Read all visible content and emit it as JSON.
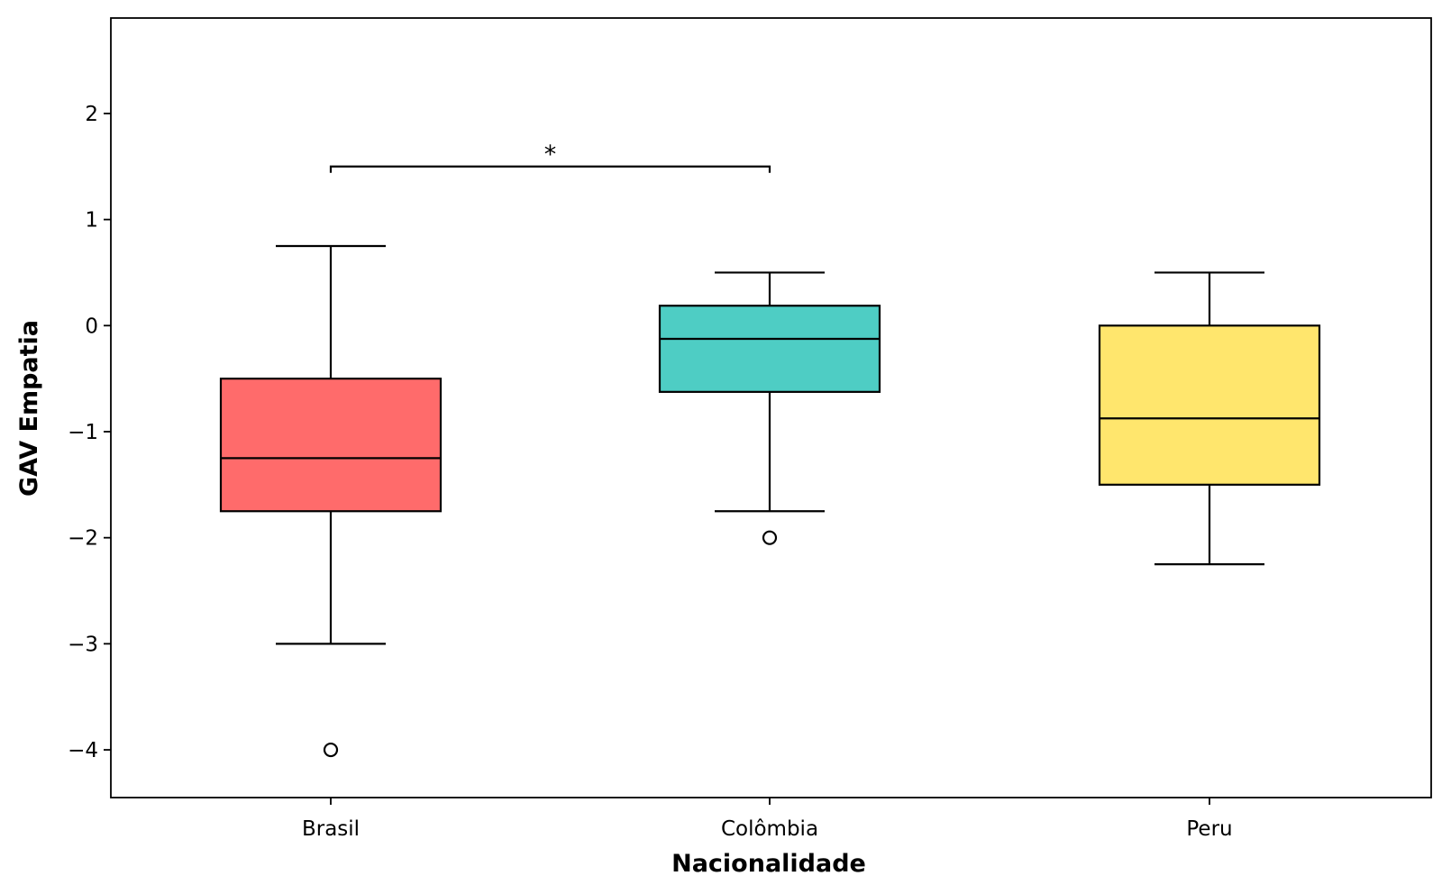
{
  "chart_data": {
    "type": "box",
    "categories": [
      "Brasil",
      "Colômbia",
      "Peru"
    ],
    "colors": [
      "#ff6b6b",
      "#4ecdc4",
      "#ffe66d"
    ],
    "boxes": [
      {
        "category": "Brasil",
        "whisker_low": -3.0,
        "q1": -1.75,
        "median": -1.25,
        "q3": -0.5,
        "whisker_high": 0.75,
        "outliers": [
          -4.0
        ]
      },
      {
        "category": "Colômbia",
        "whisker_low": -1.75,
        "q1": -0.625,
        "median": -0.125,
        "q3": 0.1875,
        "whisker_high": 0.5,
        "outliers": [
          -2.0
        ]
      },
      {
        "category": "Peru",
        "whisker_low": -2.25,
        "q1": -1.5,
        "median": -0.875,
        "q3": 0.0,
        "whisker_high": 0.5,
        "outliers": []
      }
    ],
    "xlabel": "Nacionalidade",
    "ylabel": "GAV Empatia",
    "ylim": [
      -4.45,
      2.9
    ],
    "yticks": [
      2,
      1,
      0,
      -1,
      -2,
      -3,
      -4
    ],
    "ytick_labels": [
      "2",
      "1",
      "0",
      "−1",
      "−2",
      "−3",
      "−4"
    ],
    "significance": {
      "from": "Brasil",
      "to": "Colômbia",
      "y": 1.5,
      "label": "*"
    },
    "grid": false,
    "legend": "none"
  }
}
